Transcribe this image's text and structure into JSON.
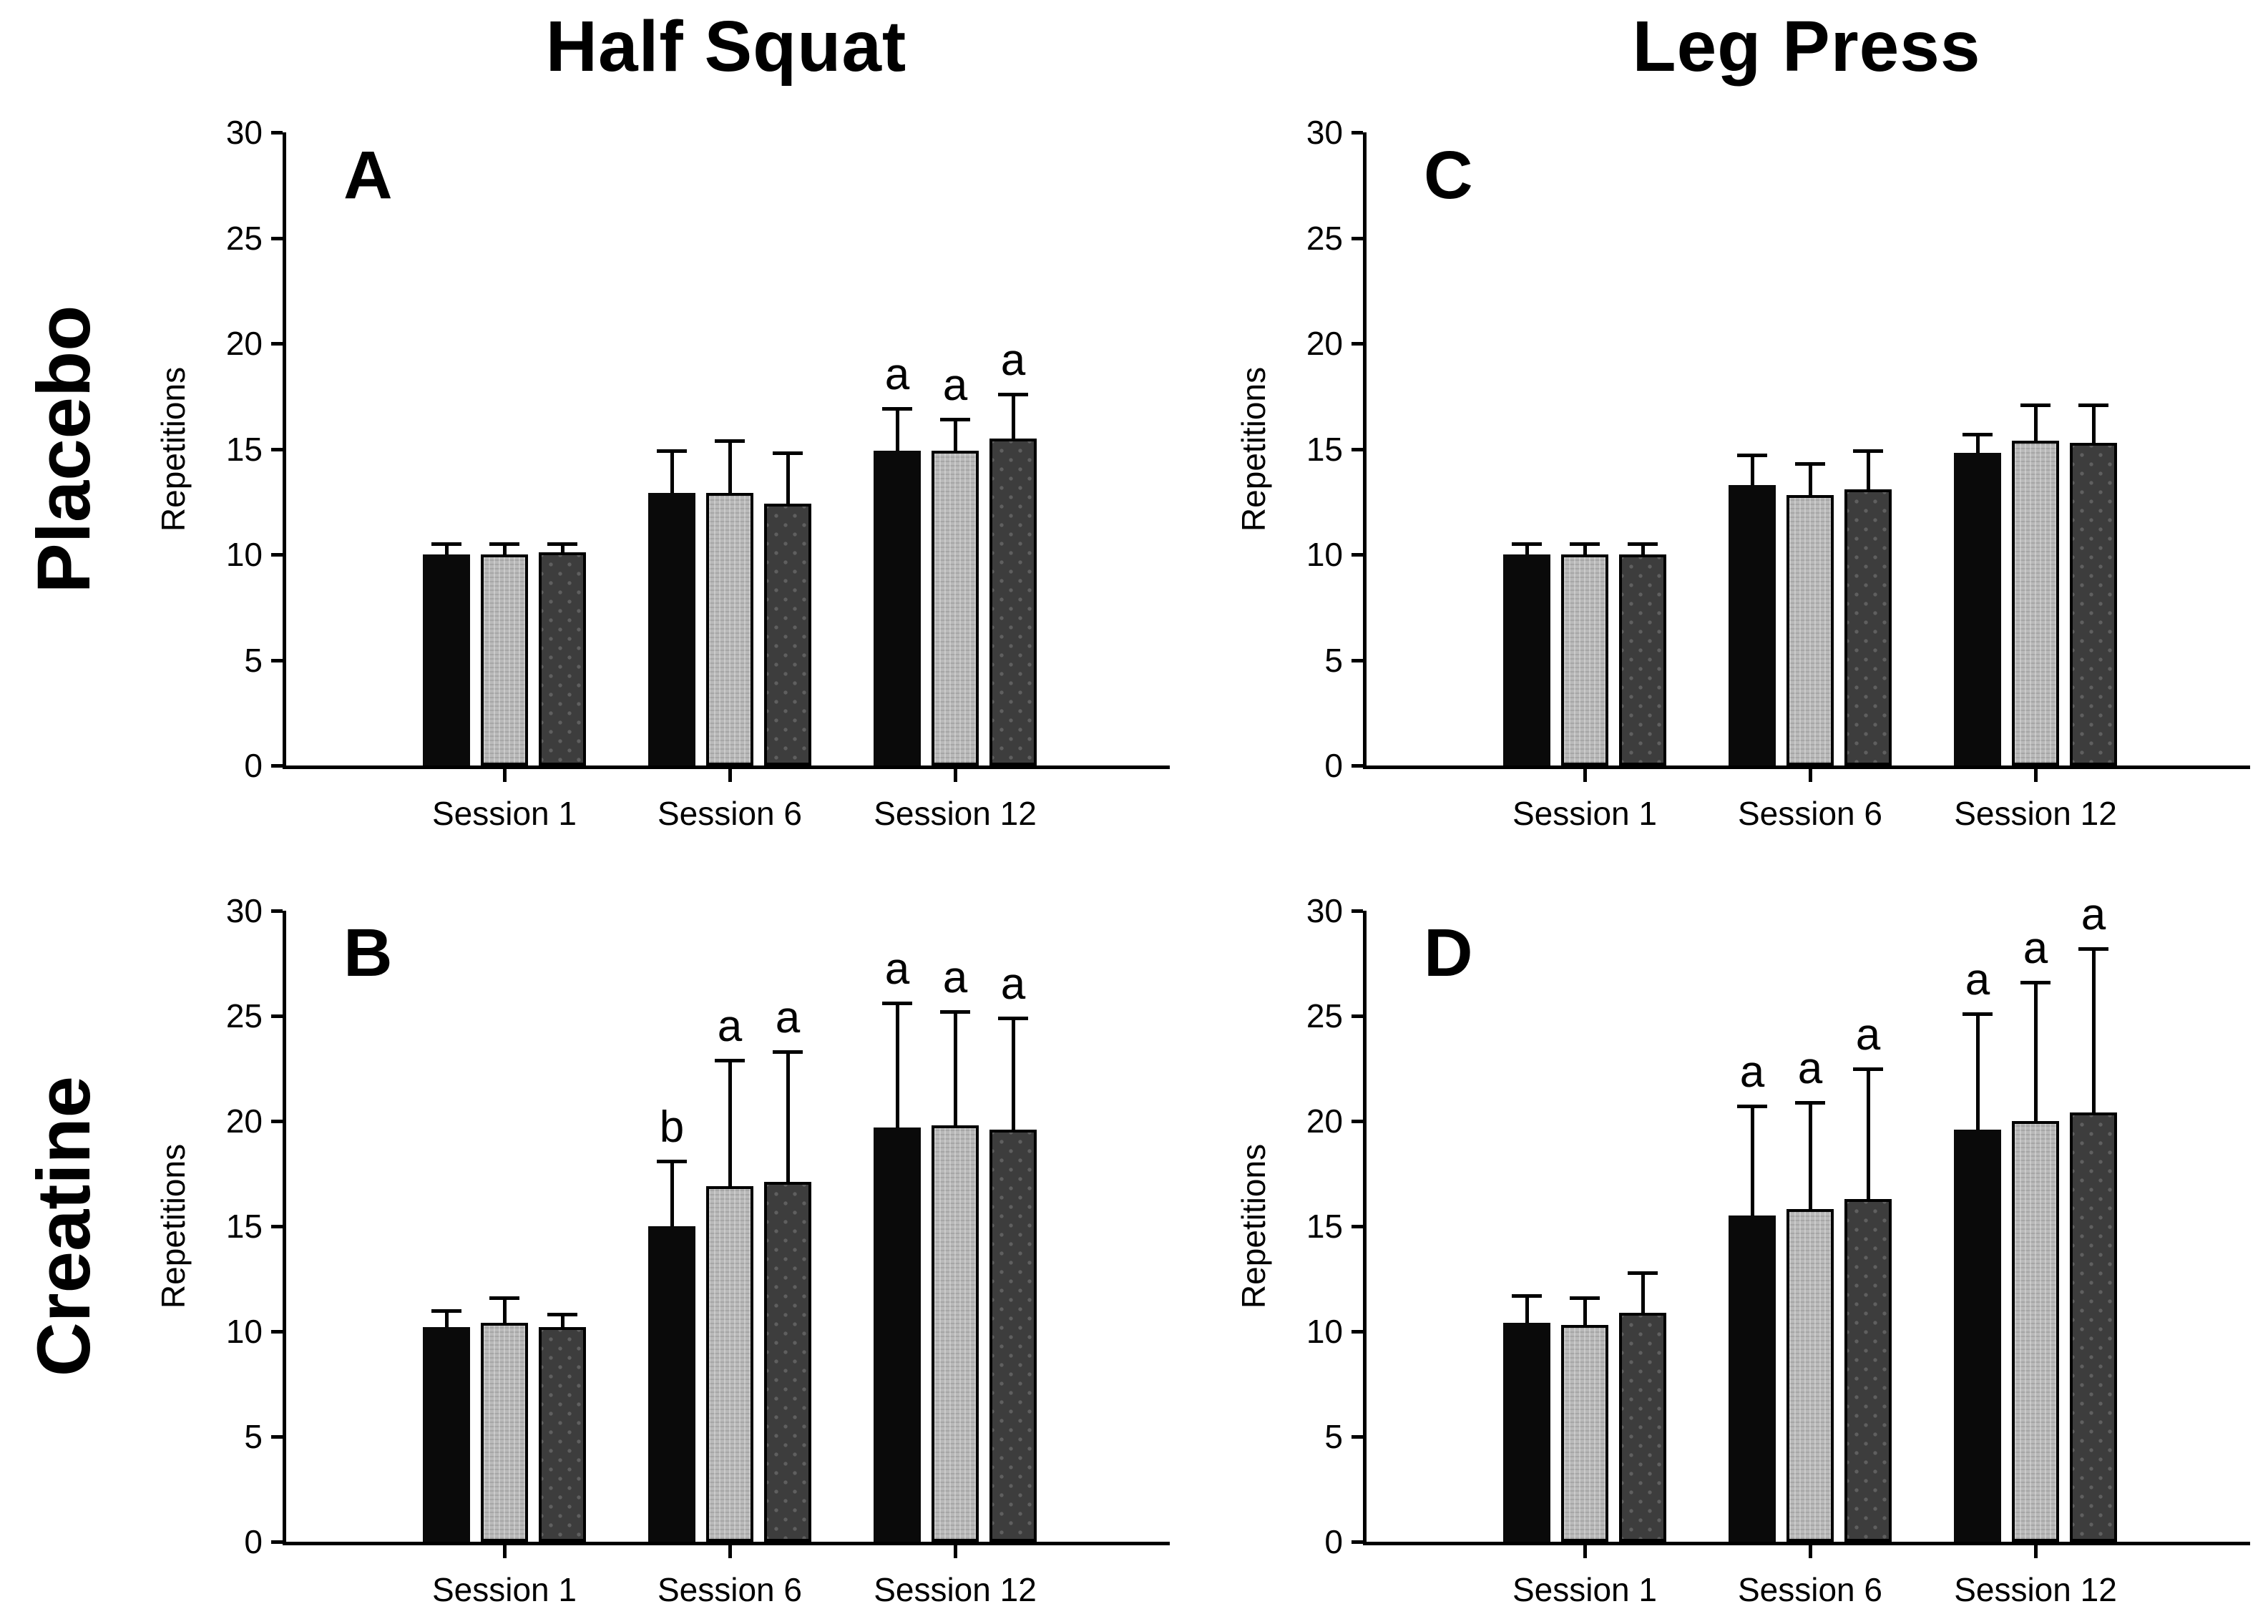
{
  "chart_data": {
    "type": "bar",
    "layout": "2x2-panels",
    "columns": [
      {
        "title": "Half Squat"
      },
      {
        "title": "Leg Press"
      }
    ],
    "rows": [
      {
        "label": "Placebo"
      },
      {
        "label": "Creatine"
      }
    ],
    "ylabel": "Repetitions",
    "ylim": [
      0,
      30
    ],
    "yticks": [
      0,
      5,
      10,
      15,
      20,
      25,
      30
    ],
    "categories": [
      "Session 1",
      "Session 6",
      "Session 12"
    ],
    "legend_position": "none",
    "bar_styles": [
      {
        "name": "black",
        "fill": "#0a0a0a"
      },
      {
        "name": "light-gray",
        "fill": "#b9b9b9"
      },
      {
        "name": "dark-gray",
        "fill": "#3d3d3d"
      }
    ],
    "panels": [
      {
        "letter": "A",
        "row": 0,
        "col": 0,
        "row_label": "Placebo",
        "column_title": "Half Squat",
        "series": [
          {
            "style": "black",
            "values": [
              10.0,
              12.9,
              14.9
            ],
            "errors_up": [
              0.5,
              2.0,
              2.0
            ],
            "sig": [
              "",
              "",
              "a"
            ]
          },
          {
            "style": "light-gray",
            "values": [
              10.0,
              12.9,
              14.9
            ],
            "errors_up": [
              0.5,
              2.5,
              1.5
            ],
            "sig": [
              "",
              "",
              "a"
            ]
          },
          {
            "style": "dark-gray",
            "values": [
              10.1,
              12.4,
              15.5
            ],
            "errors_up": [
              0.4,
              2.4,
              2.1
            ],
            "sig": [
              "",
              "",
              "a"
            ]
          }
        ]
      },
      {
        "letter": "B",
        "row": 1,
        "col": 0,
        "row_label": "Creatine",
        "column_title": "Half Squat",
        "series": [
          {
            "style": "black",
            "values": [
              10.2,
              15.0,
              19.7
            ],
            "errors_up": [
              0.8,
              3.1,
              5.9
            ],
            "sig": [
              "",
              "b",
              "a"
            ]
          },
          {
            "style": "light-gray",
            "values": [
              10.4,
              16.9,
              19.8
            ],
            "errors_up": [
              1.2,
              6.0,
              5.4
            ],
            "sig": [
              "",
              "a",
              "a"
            ]
          },
          {
            "style": "dark-gray",
            "values": [
              10.2,
              17.1,
              19.6
            ],
            "errors_up": [
              0.6,
              6.2,
              5.3
            ],
            "sig": [
              "",
              "a",
              "a"
            ]
          }
        ]
      },
      {
        "letter": "C",
        "row": 0,
        "col": 1,
        "row_label": "Placebo",
        "column_title": "Leg Press",
        "series": [
          {
            "style": "black",
            "values": [
              10.0,
              13.3,
              14.8
            ],
            "errors_up": [
              0.5,
              1.4,
              0.9
            ],
            "sig": [
              "",
              "",
              ""
            ]
          },
          {
            "style": "light-gray",
            "values": [
              10.0,
              12.8,
              15.4
            ],
            "errors_up": [
              0.5,
              1.5,
              1.7
            ],
            "sig": [
              "",
              "",
              ""
            ]
          },
          {
            "style": "dark-gray",
            "values": [
              10.0,
              13.1,
              15.3
            ],
            "errors_up": [
              0.5,
              1.8,
              1.8
            ],
            "sig": [
              "",
              "",
              ""
            ]
          }
        ]
      },
      {
        "letter": "D",
        "row": 1,
        "col": 1,
        "row_label": "Creatine",
        "column_title": "Leg Press",
        "series": [
          {
            "style": "black",
            "values": [
              10.4,
              15.5,
              19.6
            ],
            "errors_up": [
              1.3,
              5.2,
              5.5
            ],
            "sig": [
              "",
              "a",
              "a"
            ]
          },
          {
            "style": "light-gray",
            "values": [
              10.3,
              15.8,
              20.0
            ],
            "errors_up": [
              1.3,
              5.1,
              6.6
            ],
            "sig": [
              "",
              "a",
              "a"
            ]
          },
          {
            "style": "dark-gray",
            "values": [
              10.9,
              16.3,
              20.4
            ],
            "errors_up": [
              1.9,
              6.2,
              7.8
            ],
            "sig": [
              "",
              "a",
              "a"
            ]
          }
        ]
      }
    ]
  }
}
